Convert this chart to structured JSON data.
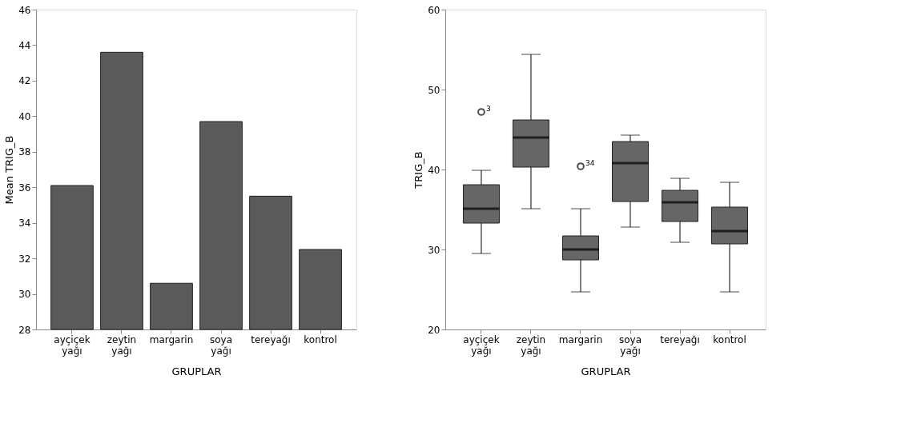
{
  "chart_data": [
    {
      "type": "bar",
      "xlabel": "GRUPLAR",
      "ylabel": "Mean TRIG_B",
      "categories": [
        "ayçiçek yağı",
        "zeytin yağı",
        "margarin",
        "soya yağı",
        "tereyağı",
        "kontrol"
      ],
      "values": [
        36.1,
        43.6,
        30.6,
        39.7,
        35.5,
        32.5
      ],
      "color": "#5a5a5a",
      "ylim": [
        28,
        46
      ],
      "yticks": [
        28,
        30,
        32,
        34,
        36,
        38,
        40,
        42,
        44,
        46
      ],
      "grid": false
    },
    {
      "type": "box",
      "xlabel": "GRUPLAR",
      "ylabel": "TRIG_B",
      "categories": [
        "ayçiçek yağı",
        "zeytin yağı",
        "margarin",
        "soya yağı",
        "tereyağı",
        "kontrol"
      ],
      "color": "#666666",
      "boxes": [
        {
          "low": 29.5,
          "q1": 33.3,
          "median": 35.1,
          "q3": 38.1,
          "high": 39.9,
          "outliers": [
            47.2
          ]
        },
        {
          "low": 35.1,
          "q1": 40.3,
          "median": 44.0,
          "q3": 46.2,
          "high": 54.4
        },
        {
          "low": 24.7,
          "q1": 28.7,
          "median": 30.0,
          "q3": 31.7,
          "high": 35.1,
          "outliers": [
            40.4
          ]
        },
        {
          "low": 32.8,
          "q1": 36.0,
          "median": 40.8,
          "q3": 43.5,
          "high": 44.3
        },
        {
          "low": 30.9,
          "q1": 33.5,
          "median": 35.9,
          "q3": 37.4,
          "high": 38.9
        },
        {
          "low": 24.7,
          "q1": 30.7,
          "median": 32.3,
          "q3": 35.3,
          "high": 38.4
        }
      ],
      "annotations": [
        "3",
        "34"
      ],
      "ylim": [
        20,
        60
      ],
      "yticks": [
        20,
        30,
        40,
        50,
        60
      ],
      "grid": false
    }
  ]
}
